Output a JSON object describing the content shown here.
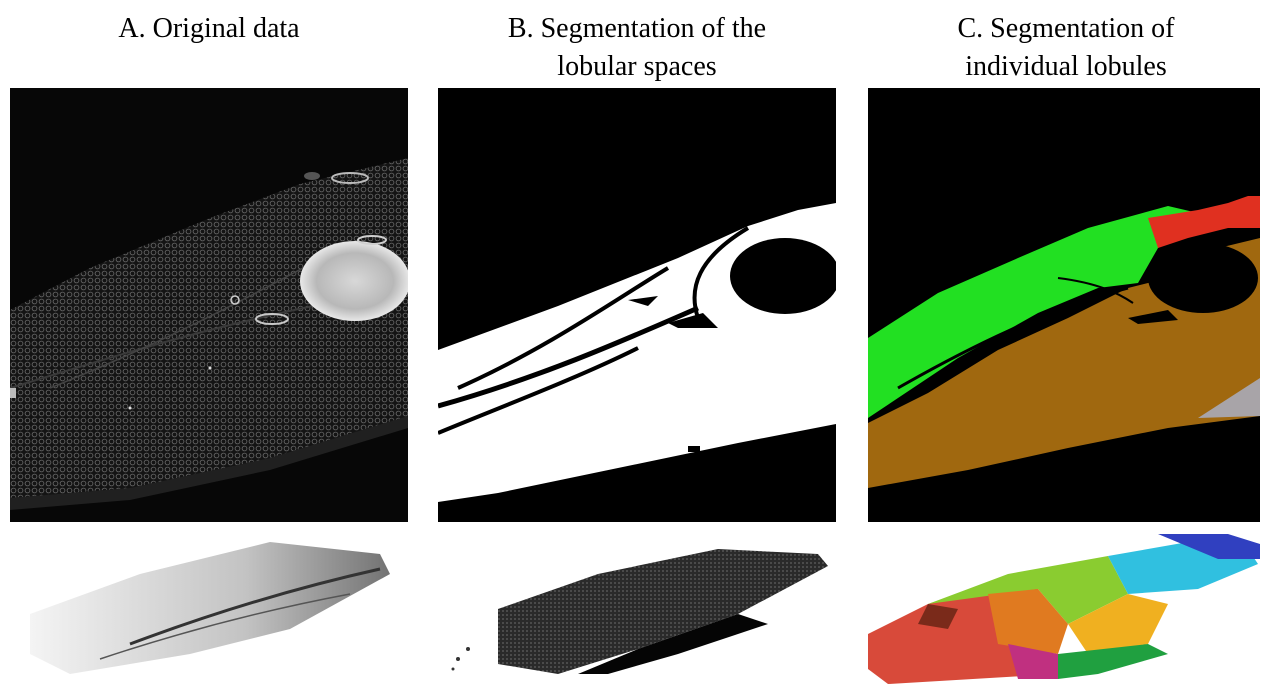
{
  "figure": {
    "panels": [
      {
        "id": "A",
        "caption_lines": [
          "A. Original data"
        ]
      },
      {
        "id": "B",
        "caption_lines": [
          "B. Segmentation of the",
          "lobular spaces"
        ]
      },
      {
        "id": "C",
        "caption_lines": [
          "C. Segmentation of",
          "individual lobules"
        ]
      }
    ]
  },
  "colors": {
    "background": "#000000",
    "lobular_space": "#ffffff",
    "lobule_green": "#22e022",
    "lobule_brown": "#a0680f",
    "lobule_red": "#e03020",
    "lobule_gray": "#a8a4a8"
  }
}
